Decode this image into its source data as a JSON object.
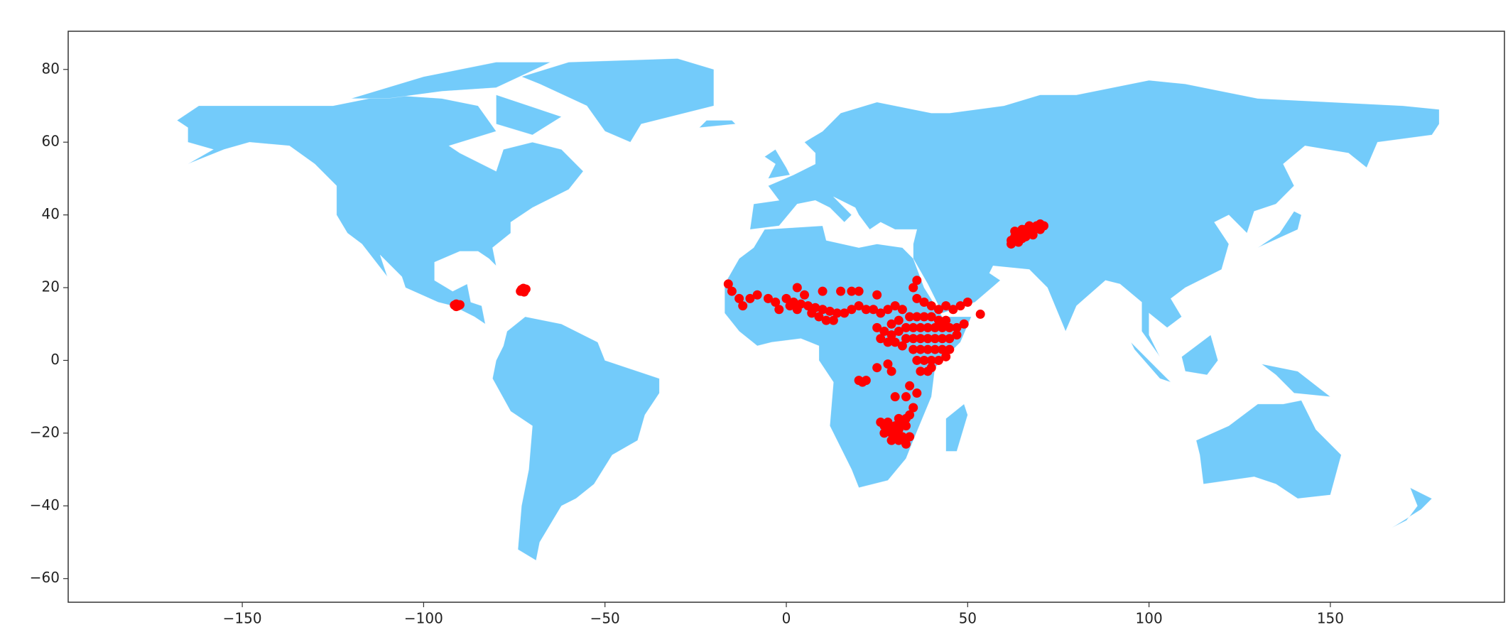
{
  "chart_data": {
    "type": "scatter",
    "xlim": [
      -198,
      198
    ],
    "ylim": [
      -66.5,
      90.5
    ],
    "xticks": [
      {
        "value": -150,
        "label": "−150"
      },
      {
        "value": -100,
        "label": "−100"
      },
      {
        "value": -50,
        "label": "−50"
      },
      0,
      50,
      100,
      150
    ],
    "yticks": [
      {
        "value": -60,
        "label": "−60"
      },
      {
        "value": -40,
        "label": "−40"
      },
      {
        "value": -20,
        "label": "−20"
      },
      0,
      20,
      40,
      60,
      80
    ],
    "land_color": "#73cbfa",
    "series": [
      {
        "color": "#ff0000",
        "x": [
          -91,
          -90.5,
          -91.5,
          -90,
          -91,
          -73,
          -72.5,
          -72,
          -73.3,
          -72.3,
          -71.8,
          62,
          63,
          64,
          65,
          66,
          67,
          68,
          69,
          70,
          71,
          66,
          64,
          65,
          67,
          68,
          70,
          62,
          63,
          66,
          -16,
          -15,
          -13,
          -10,
          -8,
          -5,
          -3,
          0,
          2,
          4,
          6,
          8,
          10,
          12,
          14,
          16,
          18,
          20,
          22,
          24,
          26,
          28,
          30,
          32,
          5,
          10,
          15,
          20,
          -12,
          9,
          11,
          13,
          7,
          3,
          1,
          -2,
          25,
          18,
          3,
          38,
          40,
          42,
          34,
          36,
          38,
          40,
          42,
          44,
          33,
          35,
          37,
          39,
          41,
          43,
          45,
          47,
          49,
          33,
          35,
          37,
          39,
          41,
          43,
          45,
          47,
          35,
          37,
          39,
          41,
          43,
          45,
          36,
          38,
          40,
          42,
          44,
          37,
          39,
          40,
          25,
          27,
          29,
          31,
          30,
          32,
          28,
          26,
          31,
          29,
          44,
          46,
          48,
          50,
          53.5,
          36,
          35,
          36,
          20,
          21,
          22,
          28,
          29,
          25,
          34,
          33,
          35,
          34,
          30,
          36,
          26,
          27,
          28,
          29,
          30,
          31,
          32,
          33,
          34,
          29,
          30,
          32,
          33,
          28,
          31,
          33,
          27,
          31
        ],
        "y": [
          15.5,
          15,
          15.2,
          15.3,
          14.8,
          19.5,
          19.8,
          19.4,
          19,
          18.8,
          19.6,
          33,
          34,
          35,
          36,
          36,
          37,
          36.5,
          37,
          37.5,
          37,
          34,
          32.5,
          33.5,
          35,
          34.5,
          36,
          32,
          35.5,
          35.2,
          21,
          19,
          17,
          17,
          18,
          17,
          16,
          17,
          16,
          15.5,
          15,
          14.5,
          14,
          13.5,
          13,
          13,
          14,
          15,
          14,
          14,
          13,
          14,
          15,
          14,
          18,
          19,
          19,
          19,
          15,
          12,
          11,
          11,
          13,
          14,
          15,
          14,
          18,
          19,
          20,
          16,
          15,
          14,
          12,
          12,
          12,
          12,
          11,
          11,
          9,
          9,
          9,
          9,
          9,
          9,
          9,
          9,
          10,
          6,
          6,
          6,
          6,
          6,
          6,
          6,
          7,
          3,
          3,
          3,
          3,
          3,
          3,
          0,
          0,
          0,
          0,
          1,
          -3,
          -3,
          -2,
          9,
          8,
          7,
          8,
          5,
          4,
          5,
          6,
          11,
          10,
          15,
          14,
          15,
          16,
          12.7,
          22,
          20,
          17,
          -5.5,
          -6,
          -5.5,
          -1,
          -3,
          -2,
          -7,
          -10,
          -13,
          -15,
          -10,
          -9,
          -17,
          -18,
          -19,
          -20,
          -18,
          -19,
          -17,
          -18,
          -21,
          -22,
          -21,
          -21,
          -23,
          -17,
          -16,
          -16,
          -20,
          -22
        ]
      }
    ]
  }
}
